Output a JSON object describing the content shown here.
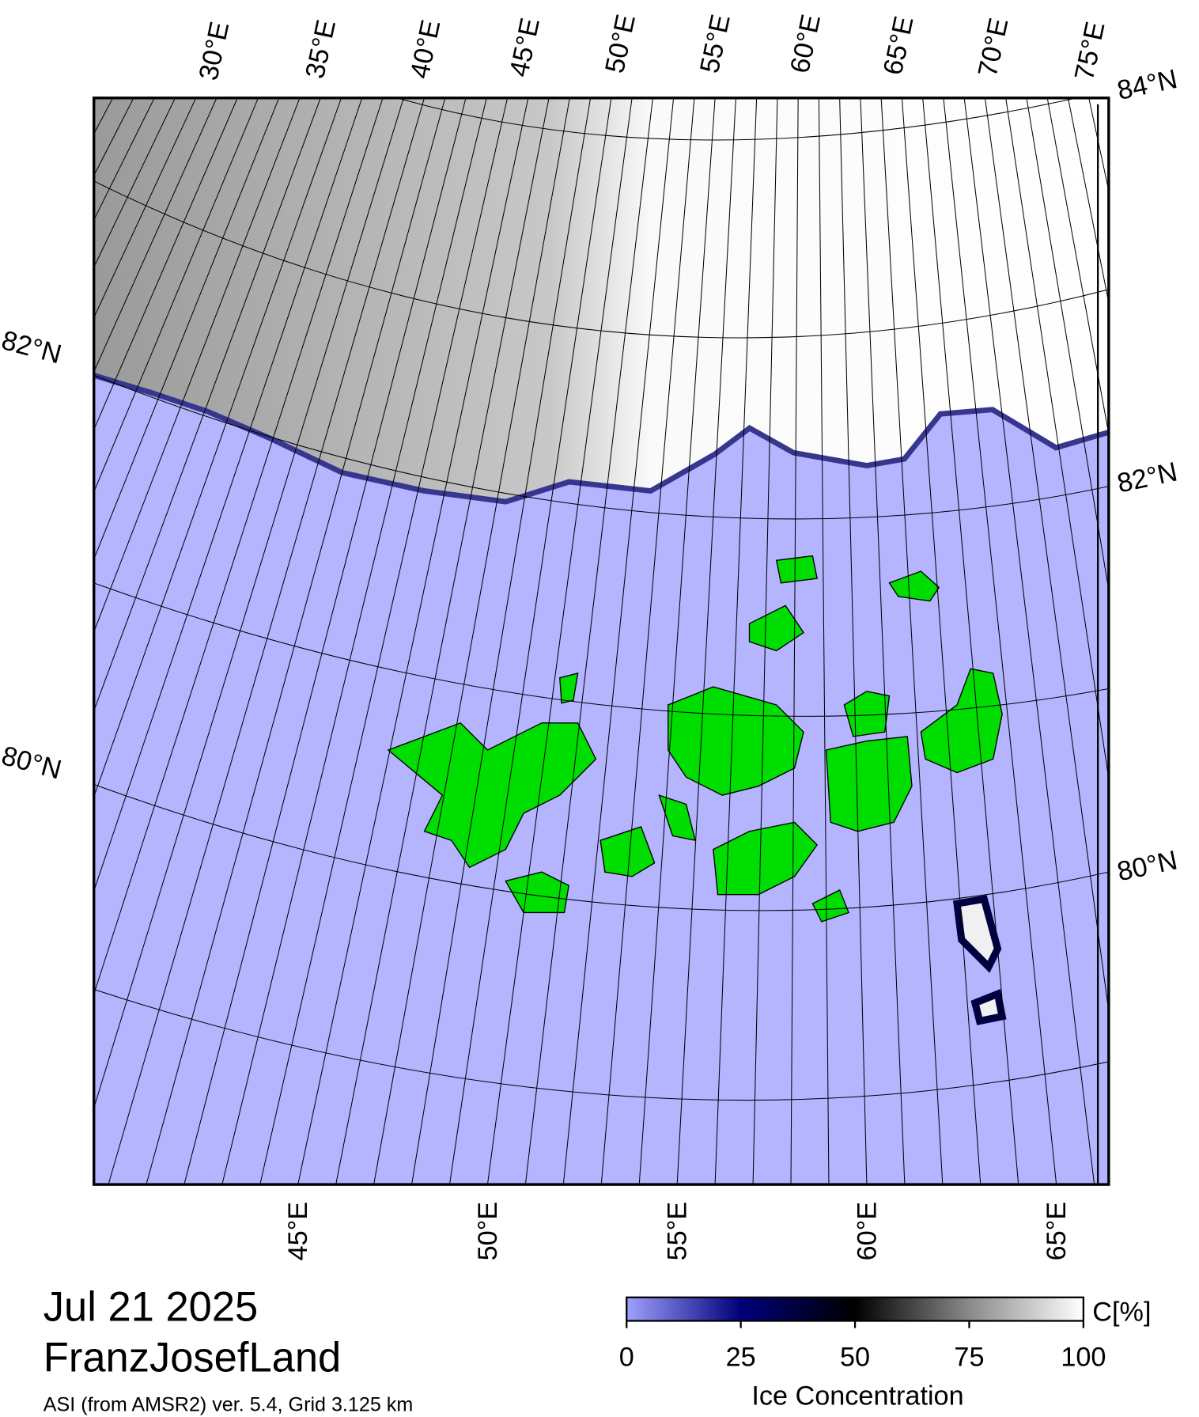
{
  "map": {
    "top_lon_labels": [
      "30°E",
      "35°E",
      "40°E",
      "45°E",
      "50°E",
      "55°E",
      "60°E",
      "65°E",
      "70°E",
      "75°E"
    ],
    "bottom_lon_labels": [
      "45°E",
      "50°E",
      "55°E",
      "60°E",
      "65°E"
    ],
    "left_lat_labels": [
      "82°N",
      "80°N"
    ],
    "right_lat_labels": [
      "84°N",
      "82°N",
      "80°N"
    ]
  },
  "title": {
    "date": "Jul 21 2025",
    "region": "FranzJosefLand",
    "source": "ASI (from AMSR2) ver. 5.4,  Grid 3.125 km"
  },
  "colorbar": {
    "label": "Ice Concentration",
    "unit": "C[%]",
    "range": [
      0,
      100
    ],
    "ticks": [
      0,
      25,
      50,
      75,
      100
    ]
  }
}
